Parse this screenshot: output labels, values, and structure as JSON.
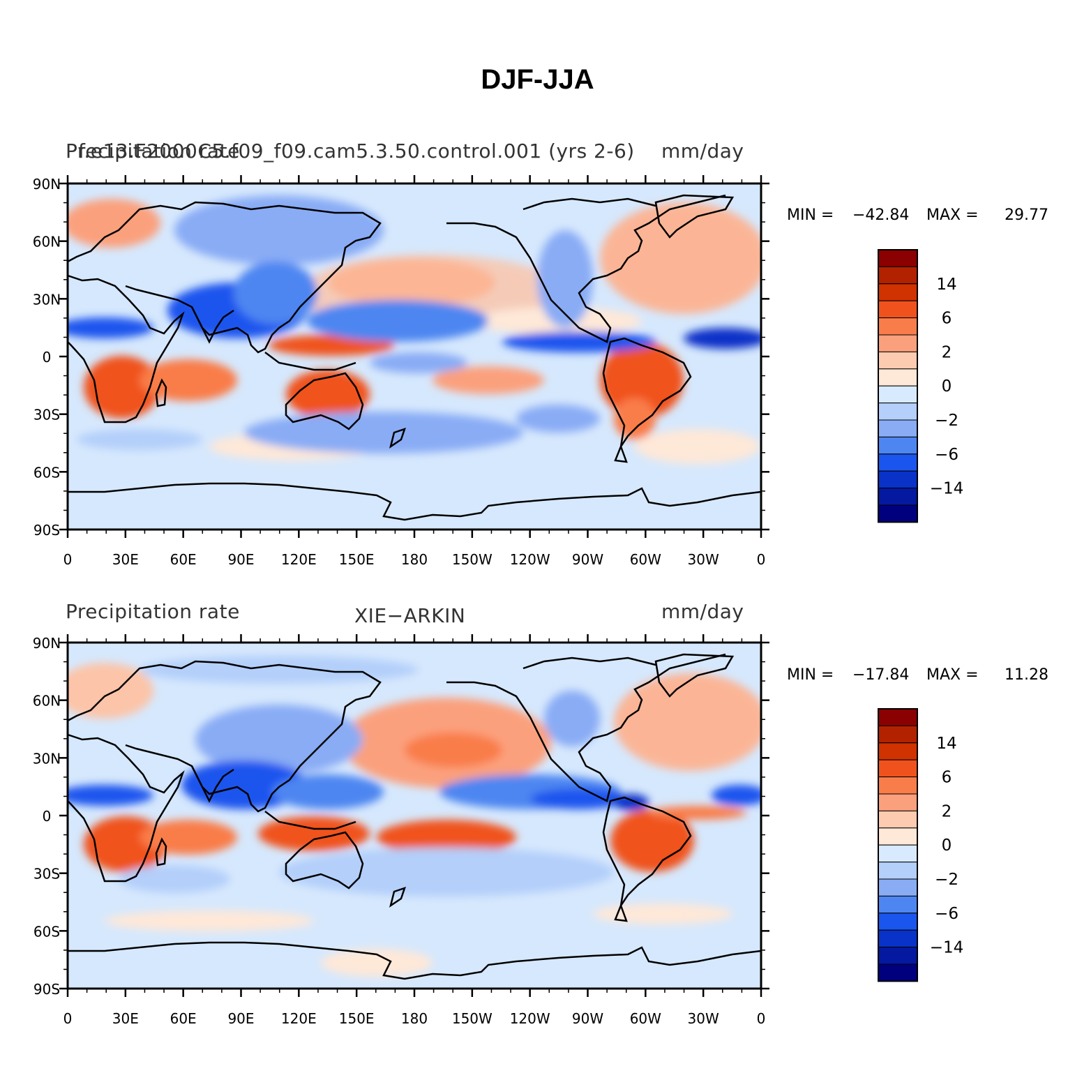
{
  "title": "DJF-JJA",
  "panels": [
    {
      "name": "model",
      "left_label": "Precipitation rate",
      "left_label_overlap": "f.e13.F2000C5.f09_f09.cam5.3.50.control.001 (yrs 2-6)",
      "center_label": "",
      "right_label": "mm/day",
      "stats": {
        "min_label": "MIN =",
        "min": "−42.84",
        "max_label": "MAX =",
        "max": "29.77"
      }
    },
    {
      "name": "obs",
      "left_label": "Precipitation rate",
      "center_label": "XIE−ARKIN",
      "right_label": "mm/day",
      "stats": {
        "min_label": "MIN =",
        "min": "−17.84",
        "max_label": "MAX =",
        "max": "11.28"
      }
    }
  ],
  "lat_ticks": [
    "90N",
    "60N",
    "30N",
    "0",
    "30S",
    "60S",
    "90S"
  ],
  "lon_ticks": [
    "0",
    "30E",
    "60E",
    "90E",
    "120E",
    "150E",
    "180",
    "150W",
    "120W",
    "90W",
    "60W",
    "30W",
    "0"
  ],
  "colorbar": {
    "colors": [
      "#8b0000",
      "#b22200",
      "#d03200",
      "#f0521e",
      "#f97d4a",
      "#fba07d",
      "#fdcbb0",
      "#fee8d8",
      "#d8eafd",
      "#b3cffa",
      "#89acf5",
      "#4e86f1",
      "#1a55ee",
      "#0832c8",
      "#0418a0",
      "#00007f"
    ],
    "labels": [
      "14",
      "6",
      "2",
      "0",
      "−2",
      "−6",
      "−14"
    ]
  }
}
